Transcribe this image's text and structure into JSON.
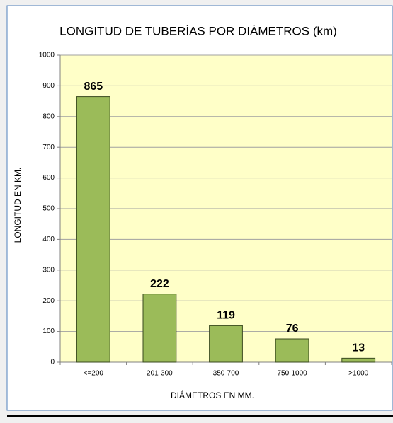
{
  "chart_data": {
    "type": "bar",
    "title": "LONGITUD DE TUBERÍAS POR DIÁMETROS (km)",
    "x_label": "DIÁMETROS EN MM.",
    "y_label": "LONGITUD EN KM.",
    "categories": [
      "<=200",
      "201-300",
      "350-700",
      "750-1000",
      ">1000"
    ],
    "values": [
      865,
      222,
      119,
      76,
      13
    ],
    "color": "#9bbb59",
    "ylim": [
      0,
      1000
    ],
    "yticks": [
      0,
      100,
      200,
      300,
      400,
      500,
      600,
      700,
      800,
      900,
      1000
    ],
    "grid": true
  }
}
